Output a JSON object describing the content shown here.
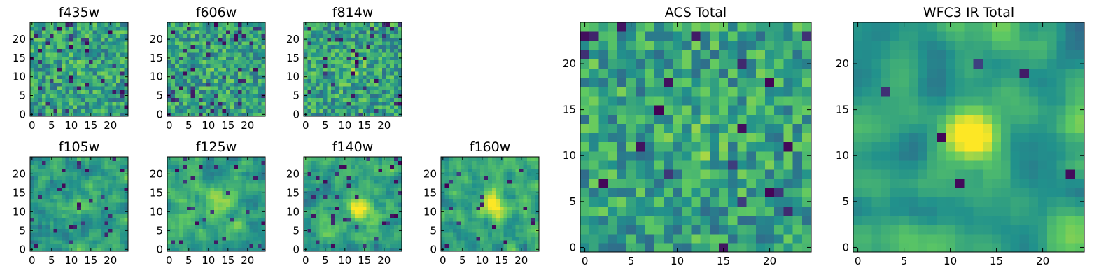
{
  "chart_data": [
    {
      "type": "heatmap",
      "title": "f435w",
      "xticks": [
        "0",
        "5",
        "10",
        "15",
        "20"
      ],
      "yticks": [
        "0",
        "5",
        "10",
        "15",
        "20"
      ],
      "grid_size": 25,
      "xlim": [
        0,
        25
      ],
      "ylim": [
        0,
        25
      ],
      "peak": [
        12,
        12
      ],
      "smooth": 0,
      "bump": 0.05,
      "hole_rate": 0.07,
      "seed": 11
    },
    {
      "type": "heatmap",
      "title": "f606w",
      "xticks": [
        "0",
        "5",
        "10",
        "15",
        "20"
      ],
      "yticks": [
        "0",
        "5",
        "10",
        "15",
        "20"
      ],
      "grid_size": 25,
      "xlim": [
        0,
        25
      ],
      "ylim": [
        0,
        25
      ],
      "peak": [
        12,
        12
      ],
      "smooth": 0,
      "bump": 0.08,
      "hole_rate": 0.07,
      "seed": 23
    },
    {
      "type": "heatmap",
      "title": "f814w",
      "xticks": [
        "0",
        "5",
        "10",
        "15",
        "20"
      ],
      "yticks": [
        "0",
        "5",
        "10",
        "15",
        "20"
      ],
      "grid_size": 25,
      "xlim": [
        0,
        25
      ],
      "ylim": [
        0,
        25
      ],
      "peak": [
        12,
        12
      ],
      "smooth": 0,
      "bump": 0.12,
      "hole_rate": 0.06,
      "seed": 37
    },
    {
      "type": "heatmap",
      "title": "f105w",
      "xticks": [
        "0",
        "5",
        "10",
        "15",
        "20"
      ],
      "yticks": [
        "0",
        "5",
        "10",
        "15",
        "20"
      ],
      "grid_size": 25,
      "xlim": [
        0,
        25
      ],
      "ylim": [
        0,
        25
      ],
      "peak": [
        13,
        12
      ],
      "smooth": 1,
      "bump": 0.2,
      "hole_rate": 0.05,
      "seed": 41
    },
    {
      "type": "heatmap",
      "title": "f125w",
      "xticks": [
        "0",
        "5",
        "10",
        "15",
        "20"
      ],
      "yticks": [
        "0",
        "5",
        "10",
        "15",
        "20"
      ],
      "grid_size": 25,
      "xlim": [
        0,
        25
      ],
      "ylim": [
        0,
        25
      ],
      "peak": [
        13,
        12
      ],
      "smooth": 1,
      "bump": 0.25,
      "hole_rate": 0.05,
      "seed": 53
    },
    {
      "type": "heatmap",
      "title": "f140w",
      "xticks": [
        "0",
        "5",
        "10",
        "15",
        "20"
      ],
      "yticks": [
        "0",
        "5",
        "10",
        "15",
        "20"
      ],
      "grid_size": 25,
      "xlim": [
        0,
        25
      ],
      "ylim": [
        0,
        25
      ],
      "peak": [
        14,
        11
      ],
      "smooth": 1,
      "bump": 0.35,
      "hole_rate": 0.04,
      "seed": 67
    },
    {
      "type": "heatmap",
      "title": "f160w",
      "xticks": [
        "0",
        "5",
        "10",
        "15",
        "20"
      ],
      "yticks": [
        "0",
        "5",
        "10",
        "15",
        "20"
      ],
      "grid_size": 25,
      "xlim": [
        0,
        25
      ],
      "ylim": [
        0,
        25
      ],
      "peak": [
        13,
        12
      ],
      "smooth": 1,
      "bump": 0.45,
      "hole_rate": 0.04,
      "seed": 79
    },
    {
      "type": "heatmap",
      "title": "ACS Total",
      "xticks": [
        "0",
        "5",
        "10",
        "15",
        "20"
      ],
      "yticks": [
        "0",
        "5",
        "10",
        "15",
        "20"
      ],
      "grid_size": 25,
      "xlim": [
        0,
        25
      ],
      "ylim": [
        0,
        25
      ],
      "peak": [
        12,
        12
      ],
      "smooth": 0,
      "bump": 0.1,
      "hole_rate": 0.04,
      "seed": 91
    },
    {
      "type": "heatmap",
      "title": "WFC3 IR Total",
      "xticks": [
        "0",
        "5",
        "10",
        "15",
        "20"
      ],
      "yticks": [
        "0",
        "5",
        "10",
        "15",
        "20"
      ],
      "grid_size": 25,
      "xlim": [
        0,
        25
      ],
      "ylim": [
        0,
        25
      ],
      "peak": [
        12,
        12
      ],
      "smooth": 2,
      "bump": 0.55,
      "hole_rate": 0.02,
      "seed": 103
    }
  ],
  "colormap": [
    "#440154",
    "#3b528b",
    "#21918c",
    "#5ec962",
    "#fde725"
  ]
}
